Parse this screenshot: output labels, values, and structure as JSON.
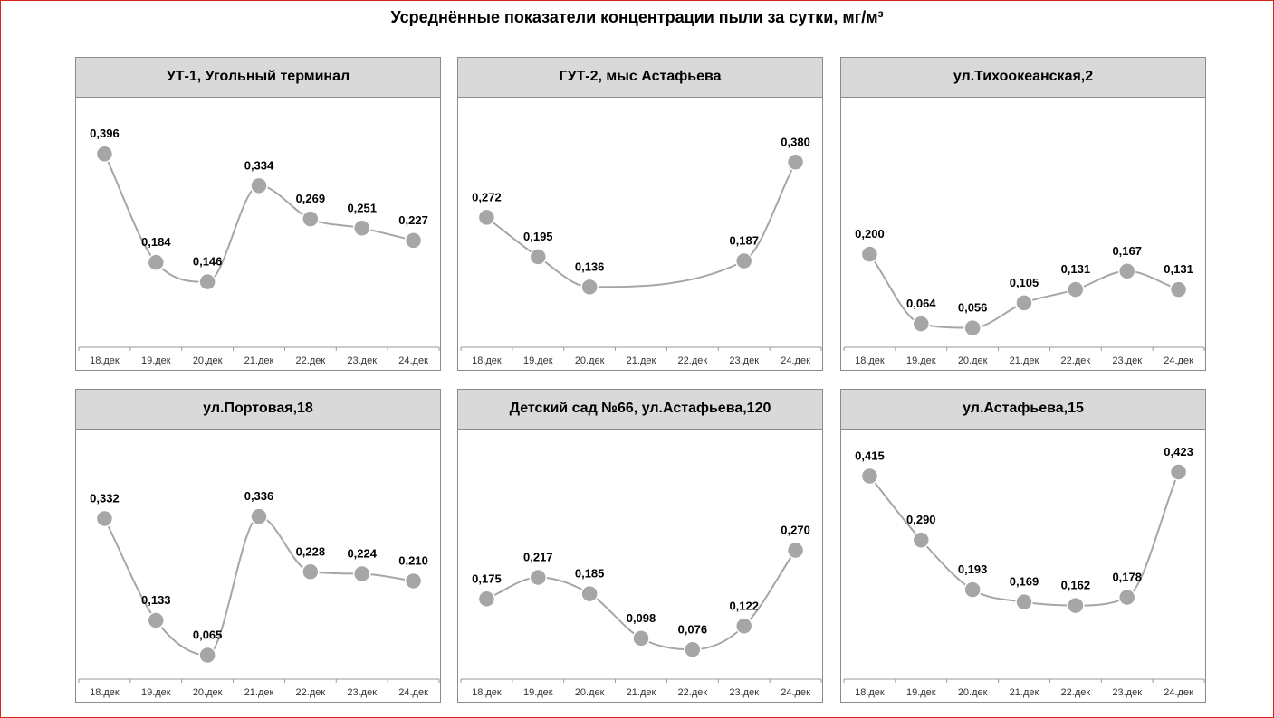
{
  "title": "Усреднённые показатели концентрации пыли за сутки, мг/м³",
  "colors": {
    "line": "#a6a6a6",
    "marker": "#a6a6a6",
    "header": "#d9d9d9",
    "frame": "#d9261c"
  },
  "chart_data": [
    {
      "type": "line",
      "title": "УТ-1, Угольный терминал",
      "categories": [
        "18.дек",
        "19.дек",
        "20.дек",
        "21.дек",
        "22.дек",
        "23.дек",
        "24.дек"
      ],
      "values": [
        0.396,
        0.184,
        0.146,
        0.334,
        0.269,
        0.251,
        0.227
      ],
      "labels": [
        "0,396",
        "0,184",
        "0,146",
        "0,334",
        "0,269",
        "0,251",
        "0,227"
      ]
    },
    {
      "type": "line",
      "title": "ГУТ-2, мыс Астафьева",
      "categories": [
        "18.дек",
        "19.дек",
        "20.дек",
        "21.дек",
        "22.дек",
        "23.дек",
        "24.дек"
      ],
      "values": [
        0.272,
        0.195,
        0.136,
        null,
        null,
        0.187,
        0.38
      ],
      "labels": [
        "0,272",
        "0,195",
        "0,136",
        "",
        "",
        "0,187",
        "0,380"
      ]
    },
    {
      "type": "line",
      "title": "ул.Тихоокеанская,2",
      "categories": [
        "18.дек",
        "19.дек",
        "20.дек",
        "21.дек",
        "22.дек",
        "23.дек",
        "24.дек"
      ],
      "values": [
        0.2,
        0.064,
        0.056,
        0.105,
        0.131,
        0.167,
        0.131
      ],
      "labels": [
        "0,200",
        "0,064",
        "0,056",
        "0,105",
        "0,131",
        "0,167",
        "0,131"
      ]
    },
    {
      "type": "line",
      "title": "ул.Портовая,18",
      "categories": [
        "18.дек",
        "19.дек",
        "20.дек",
        "21.дек",
        "22.дек",
        "23.дек",
        "24.дек"
      ],
      "values": [
        0.332,
        0.133,
        0.065,
        0.336,
        0.228,
        0.224,
        0.21
      ],
      "labels": [
        "0,332",
        "0,133",
        "0,065",
        "0,336",
        "0,228",
        "0,224",
        "0,210"
      ]
    },
    {
      "type": "line",
      "title": "Детский сад №66, ул.Астафьева,120",
      "categories": [
        "18.дек",
        "19.дек",
        "20.дек",
        "21.дек",
        "22.дек",
        "23.дек",
        "24.дек"
      ],
      "values": [
        0.175,
        0.217,
        0.185,
        0.098,
        0.076,
        0.122,
        0.27
      ],
      "labels": [
        "0,175",
        "0,217",
        "0,185",
        "0,098",
        "0,076",
        "0,122",
        "0,270"
      ]
    },
    {
      "type": "line",
      "title": "ул.Астафьева,15",
      "categories": [
        "18.дек",
        "19.дек",
        "20.дек",
        "21.дек",
        "22.дек",
        "23.дек",
        "24.дек"
      ],
      "values": [
        0.415,
        0.29,
        0.193,
        0.169,
        0.162,
        0.178,
        0.423
      ],
      "labels": [
        "0,415",
        "0,290",
        "0,193",
        "0,169",
        "0,162",
        "0,178",
        "0,423"
      ]
    }
  ]
}
